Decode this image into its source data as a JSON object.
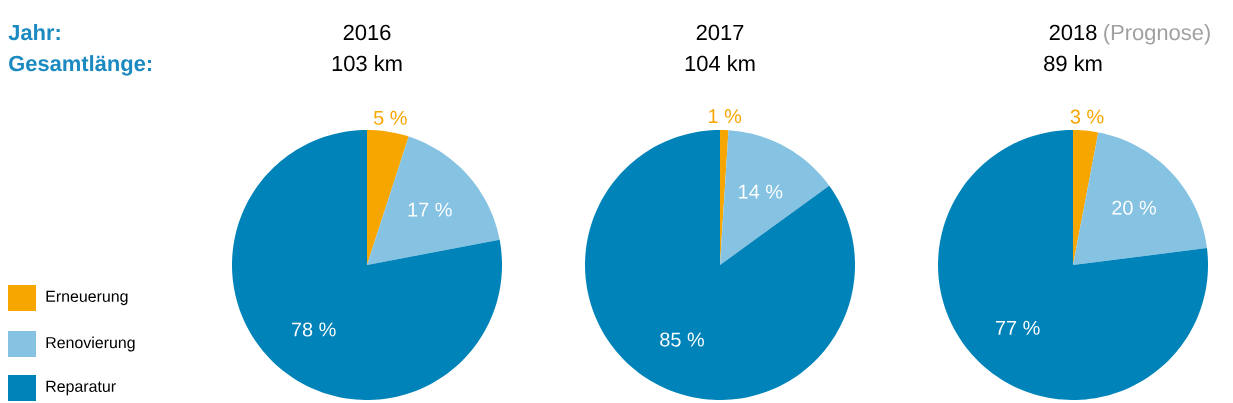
{
  "chart_data": [
    {
      "type": "pie",
      "title": "2016",
      "subtitle": "103 km",
      "annotations": [
        "Jahr:",
        "Gesamtlänge:"
      ],
      "legend": "left",
      "categories": [
        "Erneuerung",
        "Renovierung",
        "Reparatur"
      ],
      "values": [
        5,
        17,
        78
      ],
      "value_labels": [
        "5 %",
        "17 %",
        "78 %"
      ],
      "colors": [
        "#f7a600",
        "#86c2e2",
        "#0083b8"
      ]
    },
    {
      "type": "pie",
      "title": "2017",
      "subtitle": "104 km",
      "categories": [
        null,
        null,
        null
      ],
      "values": [
        1,
        14,
        85
      ],
      "value_labels": [
        "1 %",
        "14 %",
        "85 %"
      ],
      "colors": [
        "#f7a600",
        "#86c2e2",
        "#0083b8"
      ]
    },
    {
      "type": "pie",
      "title": "2018",
      "subtitle": "89 km",
      "annotations": [
        "(Prognose)"
      ],
      "categories": [
        null,
        null,
        null
      ],
      "values": [
        3,
        20,
        77
      ],
      "value_labels": [
        "3 %",
        "20 %",
        "77 %"
      ],
      "colors": [
        "#f7a600",
        "#86c2e2",
        "#0083b8"
      ]
    }
  ]
}
